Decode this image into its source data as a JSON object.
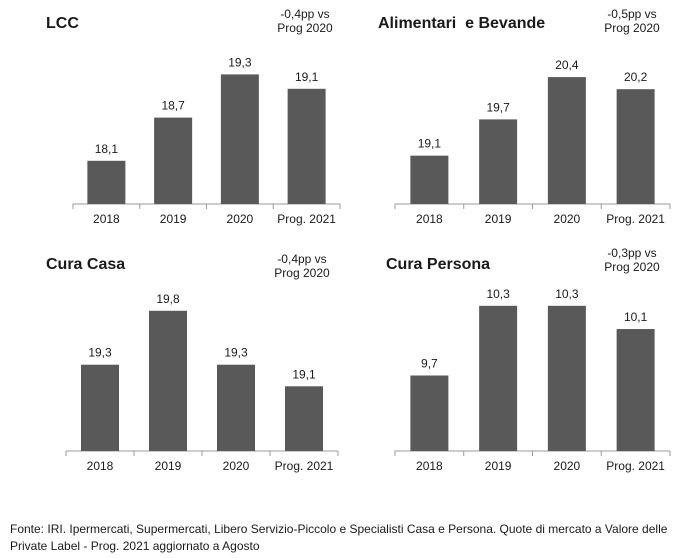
{
  "chart_data": [
    {
      "type": "bar",
      "title": "LCC",
      "annotation": [
        "-0,4pp vs",
        "Prog 2020"
      ],
      "categories": [
        "2018",
        "2019",
        "2020",
        "Prog. 2021"
      ],
      "values": [
        18.1,
        18.7,
        19.3,
        19.1
      ],
      "value_labels": [
        "18,1",
        "18,7",
        "19,3",
        "19,1"
      ],
      "ylim": [
        17.5,
        19.5
      ],
      "bar_color": "#595959",
      "grid": false
    },
    {
      "type": "bar",
      "title": "Alimentari  e Bevande",
      "annotation": [
        "-0,5pp vs",
        "Prog 2020"
      ],
      "categories": [
        "2018",
        "2019",
        "2020",
        "Prog. 2021"
      ],
      "values": [
        19.1,
        19.7,
        20.4,
        20.2
      ],
      "value_labels": [
        "19,1",
        "19,7",
        "20,4",
        "20,2"
      ],
      "ylim": [
        18.3,
        20.6
      ],
      "bar_color": "#595959",
      "grid": false
    },
    {
      "type": "bar",
      "title": "Cura Casa",
      "annotation": [
        "-0,4pp vs",
        "Prog 2020"
      ],
      "categories": [
        "2018",
        "2019",
        "2020",
        "Prog. 2021"
      ],
      "values": [
        19.3,
        19.8,
        19.3,
        19.1
      ],
      "value_labels": [
        "19,3",
        "19,8",
        "19,3",
        "19,1"
      ],
      "ylim": [
        18.5,
        19.9
      ],
      "bar_color": "#595959",
      "grid": false
    },
    {
      "type": "bar",
      "title": "Cura Persona",
      "annotation": [
        "-0,3pp vs",
        "Prog 2020"
      ],
      "categories": [
        "2018",
        "2019",
        "2020",
        "Prog. 2021"
      ],
      "values": [
        9.7,
        10.3,
        10.3,
        10.1
      ],
      "value_labels": [
        "9,7",
        "10,3",
        "10,3",
        "10,1"
      ],
      "ylim": [
        9.05,
        10.35
      ],
      "bar_color": "#595959",
      "grid": false
    }
  ],
  "footnote": "Fonte: IRI. Ipermercati, Supermercati, Libero Servizio-Piccolo e Specialisti Casa e Persona.   Quote di mercato a Valore delle Private Label - Prog. 2021 aggiornato a Agosto"
}
